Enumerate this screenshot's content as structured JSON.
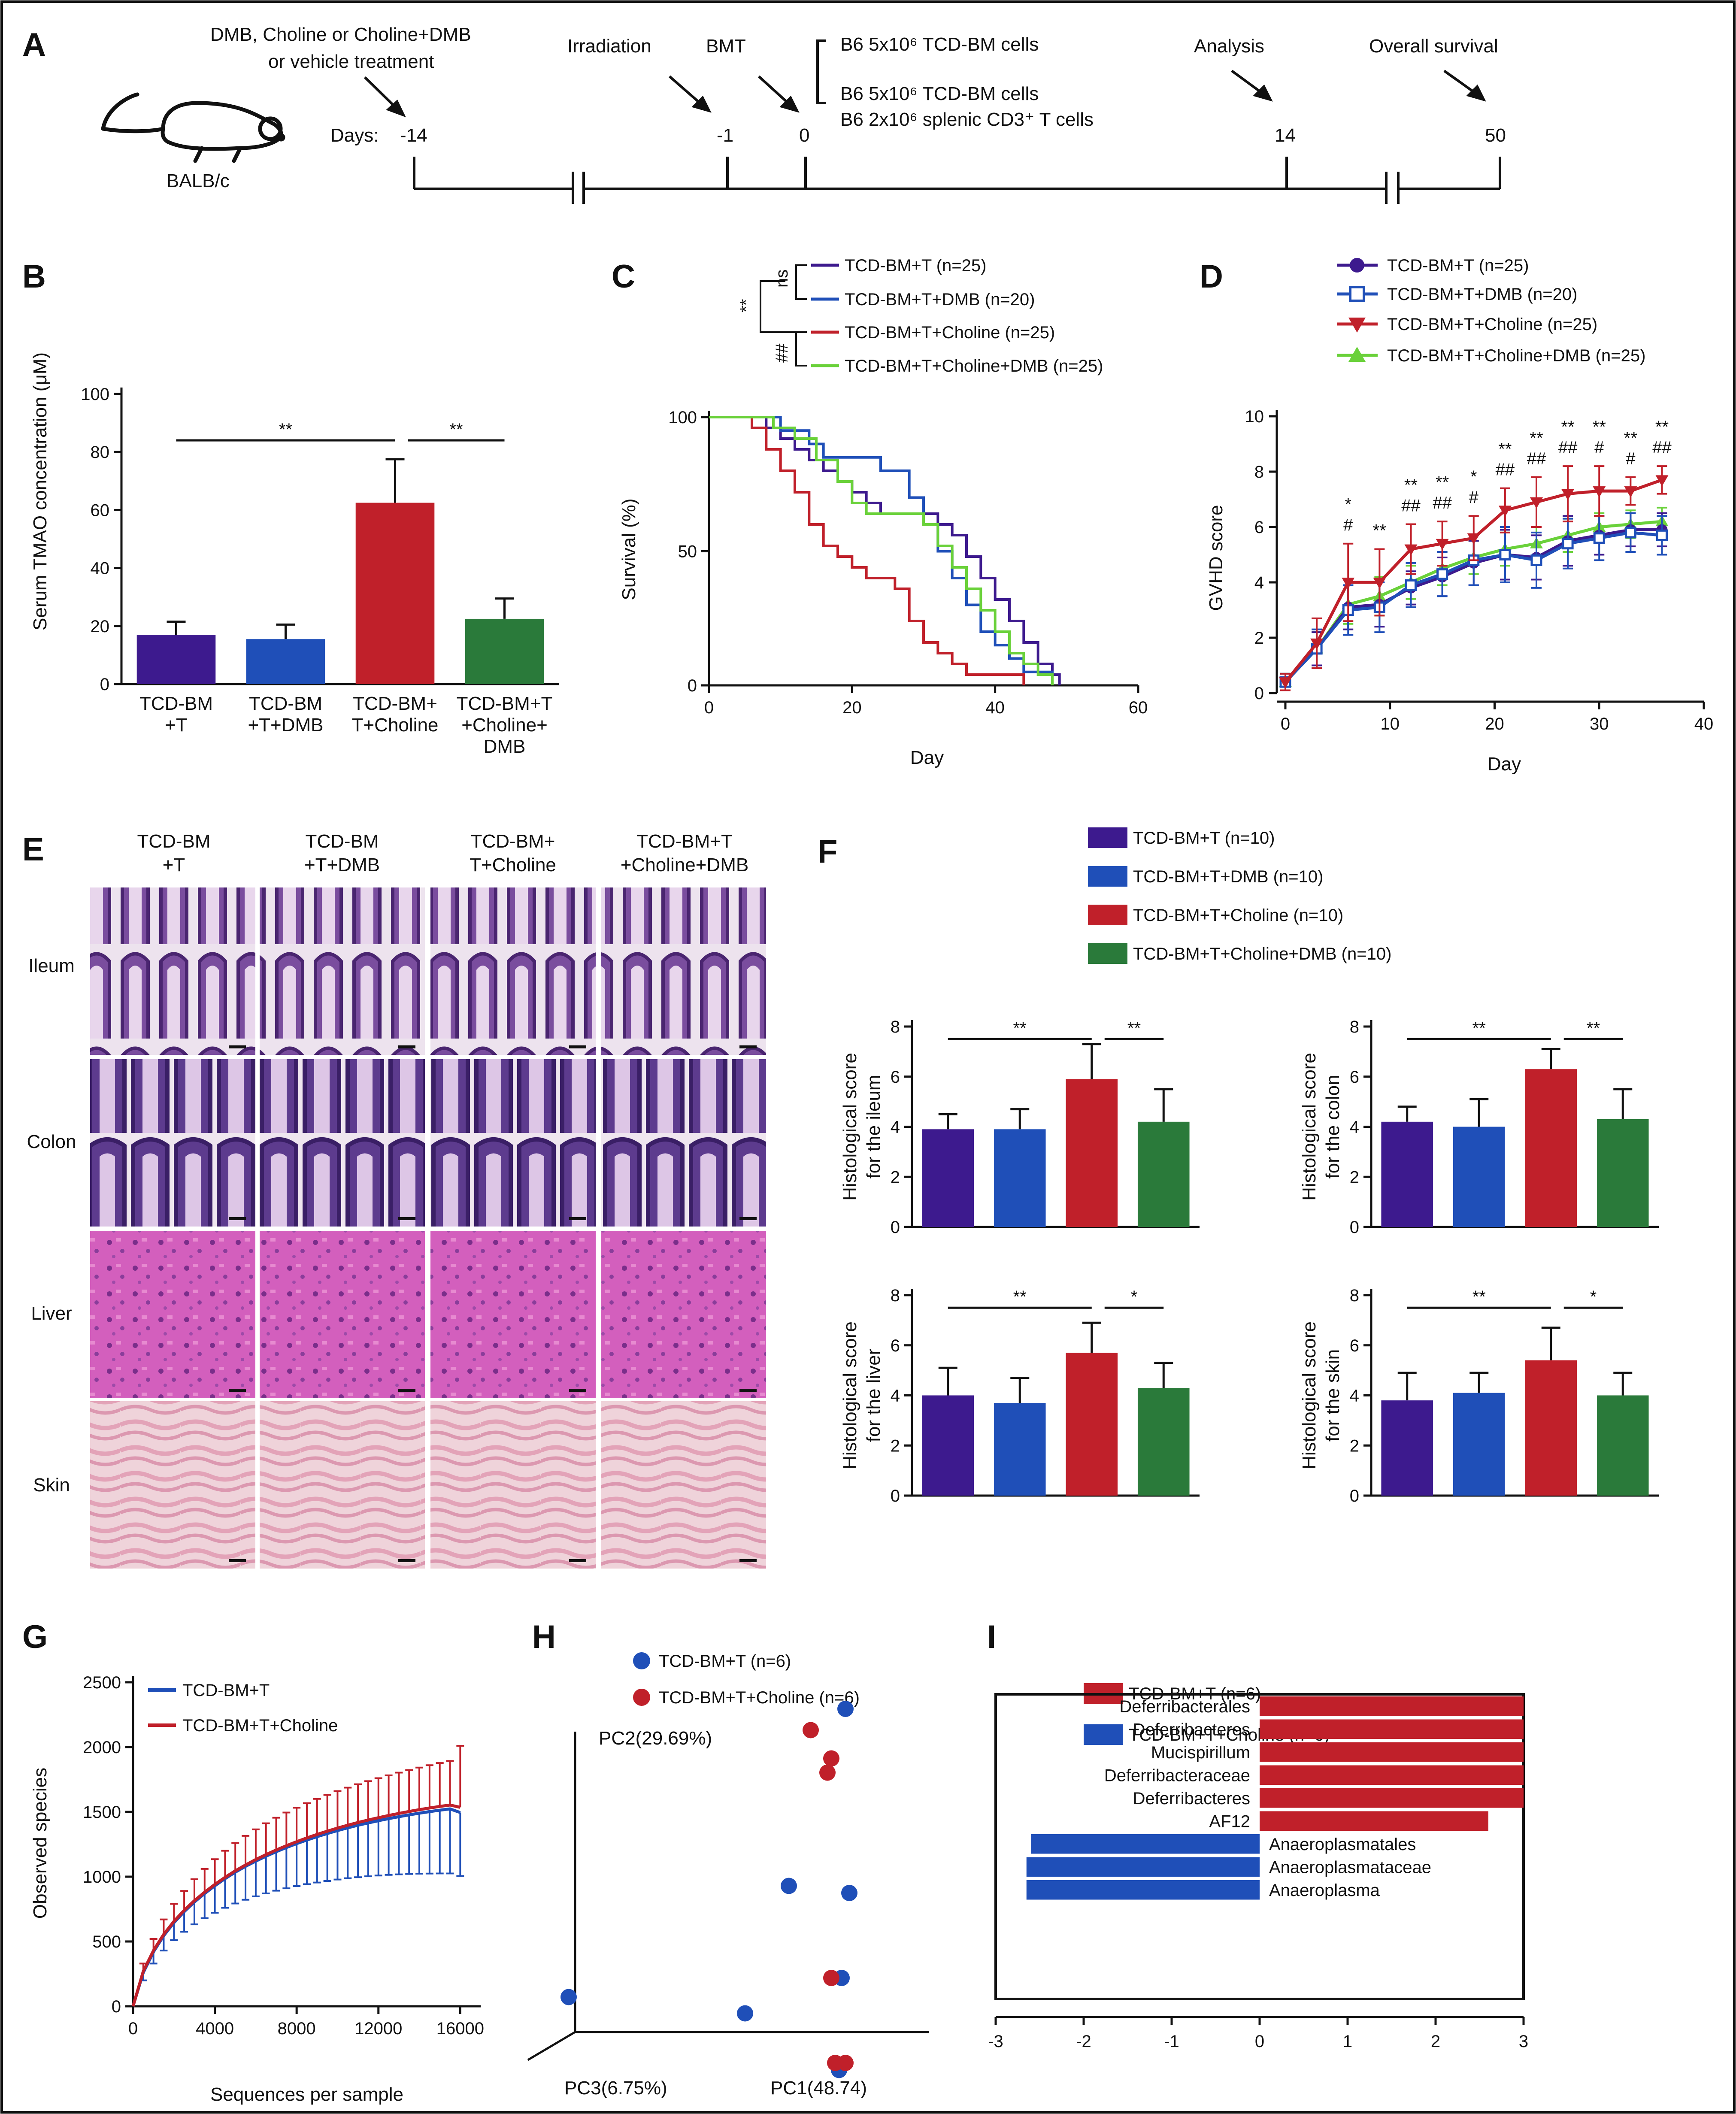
{
  "border_color": "#111111",
  "panel_A": {
    "letter": "A",
    "mouse_label": "BALB/c",
    "treatment_text": [
      "DMB, Choline or Choline+DMB",
      "or vehicle treatment"
    ],
    "days_label": "Days:",
    "events": [
      {
        "label": "Irradiation"
      },
      {
        "label": "BMT"
      },
      {
        "label": "Analysis"
      },
      {
        "label": "Overall survival"
      }
    ],
    "ticks": [
      "-14",
      "-1",
      "0",
      "14",
      "50"
    ],
    "cells_text": [
      "B6 5x10⁶ TCD-BM cells",
      "B6 5x10⁶ TCD-BM cells",
      "B6 2x10⁶ splenic CD3⁺ T cells"
    ]
  },
  "chart_data": [
    {
      "id": "B",
      "type": "bar",
      "ylabel": "Serum TMAO concentration (μM)",
      "ylim": [
        0,
        100
      ],
      "yticks": [
        0,
        20,
        40,
        60,
        80,
        100
      ],
      "categories": [
        [
          "TCD-BM",
          "+T"
        ],
        [
          "TCD-BM",
          "+T+DMB"
        ],
        [
          "TCD-BM+",
          "T+Choline"
        ],
        [
          "TCD-BM+T",
          "+Choline+",
          "DMB"
        ]
      ],
      "values": [
        17,
        15.5,
        62.5,
        22.5
      ],
      "errors": [
        4.5,
        5,
        15,
        7
      ],
      "colors": [
        "#3d1a8e",
        "#1f4fb8",
        "#c0202a",
        "#2a7a3a"
      ],
      "significance": [
        {
          "from": 0,
          "to": 2,
          "label": "**"
        },
        {
          "from": 2,
          "to": 3,
          "label": "**"
        }
      ]
    },
    {
      "id": "C",
      "type": "line",
      "xlabel": "Day",
      "ylabel": "Survival (%)",
      "xlim": [
        0,
        60
      ],
      "ylim": [
        0,
        100
      ],
      "xticks": [
        0,
        20,
        40,
        60
      ],
      "yticks": [
        0,
        50,
        100
      ],
      "series": [
        {
          "name": "TCD-BM+T (n=25)",
          "color": "#3d1a8e",
          "step_x": [
            0,
            8,
            10,
            12,
            14,
            16,
            18,
            20,
            22,
            24,
            26,
            28,
            30,
            32,
            34,
            36,
            38,
            40,
            42,
            44,
            46,
            48,
            49
          ],
          "step_y": [
            100,
            96,
            92,
            88,
            84,
            80,
            76,
            72,
            68,
            64,
            64,
            64,
            64,
            60,
            56,
            48,
            40,
            32,
            24,
            16,
            8,
            4,
            0
          ]
        },
        {
          "name": "TCD-BM+T+DMB (n=20)",
          "color": "#1f4fb8",
          "step_x": [
            0,
            10,
            14,
            16,
            18,
            20,
            24,
            28,
            30,
            32,
            34,
            36,
            38,
            40,
            42,
            44,
            46,
            48
          ],
          "step_y": [
            100,
            95,
            90,
            85,
            85,
            85,
            80,
            70,
            60,
            50,
            40,
            30,
            20,
            15,
            10,
            5,
            5,
            0
          ]
        },
        {
          "name": "TCD-BM+T+Choline (n=25)",
          "color": "#c0202a",
          "step_x": [
            0,
            6,
            8,
            10,
            12,
            14,
            16,
            18,
            20,
            22,
            24,
            26,
            28,
            30,
            32,
            34,
            36,
            40,
            44
          ],
          "step_y": [
            100,
            96,
            88,
            80,
            72,
            60,
            52,
            48,
            44,
            40,
            40,
            36,
            24,
            16,
            12,
            8,
            4,
            4,
            0
          ]
        },
        {
          "name": "TCD-BM+T+Choline+DMB (n=25)",
          "color": "#6ad13a",
          "step_x": [
            0,
            9,
            12,
            15,
            18,
            20,
            22,
            24,
            28,
            30,
            32,
            34,
            36,
            38,
            40,
            42,
            44,
            46,
            48
          ],
          "step_y": [
            100,
            96,
            92,
            84,
            76,
            68,
            64,
            64,
            64,
            60,
            52,
            44,
            36,
            28,
            20,
            12,
            8,
            4,
            0
          ]
        }
      ],
      "significance": [
        {
          "label": "ns"
        },
        {
          "label": "**"
        },
        {
          "label": "##"
        }
      ]
    },
    {
      "id": "D",
      "type": "line",
      "xlabel": "Day",
      "ylabel": "GVHD score",
      "xlim": [
        0,
        40
      ],
      "ylim": [
        0,
        10
      ],
      "xticks": [
        0,
        10,
        20,
        30,
        40
      ],
      "yticks": [
        0,
        2,
        4,
        6,
        8,
        10
      ],
      "x": [
        0,
        3,
        6,
        9,
        12,
        15,
        18,
        21,
        24,
        27,
        30,
        33,
        36
      ],
      "series": [
        {
          "name": "TCD-BM+T (n=25)",
          "color": "#3d1a8e",
          "marker": "circle",
          "values": [
            0.4,
            1.6,
            3.1,
            3.2,
            3.8,
            4.2,
            4.7,
            5.0,
            4.9,
            5.5,
            5.7,
            5.9,
            5.9
          ],
          "errors": [
            0.3,
            0.6,
            0.8,
            0.8,
            0.6,
            0.7,
            0.8,
            0.9,
            0.8,
            0.9,
            0.7,
            0.6,
            0.6
          ]
        },
        {
          "name": "TCD-BM+T+DMB (n=20)",
          "color": "#1f4fb8",
          "marker": "square",
          "values": [
            0.4,
            1.6,
            3.0,
            3.1,
            3.9,
            4.3,
            4.8,
            5.0,
            4.8,
            5.4,
            5.6,
            5.8,
            5.7
          ],
          "errors": [
            0.3,
            0.7,
            0.9,
            0.9,
            0.8,
            0.8,
            0.9,
            1.0,
            1.0,
            0.9,
            0.8,
            0.7,
            0.7
          ]
        },
        {
          "name": "TCD-BM+T+Choline (n=25)",
          "color": "#c0202a",
          "marker": "triangle-down",
          "values": [
            0.4,
            1.8,
            4.0,
            4.0,
            5.2,
            5.4,
            5.6,
            6.6,
            6.9,
            7.2,
            7.3,
            7.3,
            7.7
          ],
          "errors": [
            0.3,
            0.9,
            1.4,
            1.2,
            0.9,
            0.8,
            0.8,
            0.8,
            0.9,
            1.0,
            0.9,
            0.5,
            0.5
          ]
        },
        {
          "name": "TCD-BM+T+Choline+DMB (n=25)",
          "color": "#6ad13a",
          "marker": "triangle-up",
          "values": [
            0.4,
            1.6,
            3.2,
            3.5,
            4.0,
            4.5,
            4.9,
            5.2,
            5.4,
            5.7,
            6.0,
            6.1,
            6.2
          ],
          "errors": [
            0.3,
            0.6,
            0.7,
            0.7,
            0.6,
            0.6,
            0.6,
            0.6,
            0.6,
            0.6,
            0.5,
            0.5,
            0.5
          ]
        }
      ],
      "annotations": [
        {
          "x": 6,
          "lines": [
            "*",
            "#"
          ]
        },
        {
          "x": 9,
          "lines": [
            "**"
          ]
        },
        {
          "x": 12,
          "lines": [
            "**",
            "##"
          ]
        },
        {
          "x": 15,
          "lines": [
            "**",
            "##"
          ]
        },
        {
          "x": 18,
          "lines": [
            "*",
            "#"
          ]
        },
        {
          "x": 21,
          "lines": [
            "**",
            "##"
          ]
        },
        {
          "x": 24,
          "lines": [
            "**",
            "##"
          ]
        },
        {
          "x": 27,
          "lines": [
            "**",
            "##"
          ]
        },
        {
          "x": 30,
          "lines": [
            "**",
            "#"
          ]
        },
        {
          "x": 33,
          "lines": [
            "**",
            "#"
          ]
        },
        {
          "x": 36,
          "lines": [
            "**",
            "##"
          ]
        }
      ]
    },
    {
      "id": "F-ileum",
      "type": "bar",
      "ylabel": [
        "Histological score",
        "for the ileum"
      ],
      "ylim": [
        0,
        8
      ],
      "yticks": [
        0,
        2,
        4,
        6,
        8
      ],
      "values": [
        3.9,
        3.9,
        5.9,
        4.2
      ],
      "errors": [
        0.6,
        0.8,
        1.4,
        1.3
      ],
      "colors": [
        "#3d1a8e",
        "#1f4fb8",
        "#c0202a",
        "#2a7a3a"
      ],
      "significance": [
        {
          "from": 0,
          "to": 2,
          "label": "**"
        },
        {
          "from": 2,
          "to": 3,
          "label": "**"
        }
      ]
    },
    {
      "id": "F-colon",
      "type": "bar",
      "ylabel": [
        "Histological score",
        "for the colon"
      ],
      "ylim": [
        0,
        8
      ],
      "yticks": [
        0,
        2,
        4,
        6,
        8
      ],
      "values": [
        4.2,
        4.0,
        6.3,
        4.3
      ],
      "errors": [
        0.6,
        1.1,
        0.8,
        1.2
      ],
      "colors": [
        "#3d1a8e",
        "#1f4fb8",
        "#c0202a",
        "#2a7a3a"
      ],
      "significance": [
        {
          "from": 0,
          "to": 2,
          "label": "**"
        },
        {
          "from": 2,
          "to": 3,
          "label": "**"
        }
      ]
    },
    {
      "id": "F-liver",
      "type": "bar",
      "ylabel": [
        "Histological score",
        "for the liver"
      ],
      "ylim": [
        0,
        8
      ],
      "yticks": [
        0,
        2,
        4,
        6,
        8
      ],
      "values": [
        4.0,
        3.7,
        5.7,
        4.3
      ],
      "errors": [
        1.1,
        1.0,
        1.2,
        1.0
      ],
      "colors": [
        "#3d1a8e",
        "#1f4fb8",
        "#c0202a",
        "#2a7a3a"
      ],
      "significance": [
        {
          "from": 0,
          "to": 2,
          "label": "**"
        },
        {
          "from": 2,
          "to": 3,
          "label": "*"
        }
      ]
    },
    {
      "id": "F-skin",
      "type": "bar",
      "ylabel": [
        "Histological score",
        "for the skin"
      ],
      "ylim": [
        0,
        8
      ],
      "yticks": [
        0,
        2,
        4,
        6,
        8
      ],
      "values": [
        3.8,
        4.1,
        5.4,
        4.0
      ],
      "errors": [
        1.1,
        0.8,
        1.3,
        0.9
      ],
      "colors": [
        "#3d1a8e",
        "#1f4fb8",
        "#c0202a",
        "#2a7a3a"
      ],
      "significance": [
        {
          "from": 0,
          "to": 2,
          "label": "**"
        },
        {
          "from": 2,
          "to": 3,
          "label": "*"
        }
      ]
    },
    {
      "id": "G",
      "type": "line",
      "xlabel": "Sequences per sample",
      "ylabel": "Observed species",
      "xlim": [
        0,
        17000
      ],
      "ylim": [
        0,
        2500
      ],
      "xticks": [
        0,
        4000,
        8000,
        12000,
        16000
      ],
      "yticks": [
        0,
        500,
        1000,
        1500,
        2000,
        2500
      ],
      "x": [
        0,
        500,
        1000,
        1500,
        2000,
        2500,
        3000,
        3500,
        4000,
        4500,
        5000,
        5500,
        6000,
        6500,
        7000,
        7500,
        8000,
        8500,
        9000,
        9500,
        10000,
        10500,
        11000,
        11500,
        12000,
        12500,
        13000,
        13500,
        14000,
        14500,
        15000,
        15500,
        16000
      ],
      "series": [
        {
          "name": "TCD-BM+T",
          "color": "#1f4fb8",
          "values": [
            0,
            260,
            420,
            545,
            645,
            730,
            805,
            870,
            930,
            985,
            1035,
            1080,
            1120,
            1158,
            1193,
            1225,
            1255,
            1283,
            1309,
            1333,
            1356,
            1377,
            1397,
            1415,
            1432,
            1448,
            1463,
            1477,
            1490,
            1502,
            1513,
            1523,
            1495
          ],
          "lower": [
            0,
            200,
            330,
            430,
            510,
            575,
            632,
            680,
            722,
            760,
            793,
            822,
            848,
            871,
            892,
            910,
            927,
            942,
            955,
            967,
            978,
            988,
            996,
            1003,
            1009,
            1014,
            1018,
            1021,
            1023,
            1024,
            1025,
            1025,
            1005
          ]
        },
        {
          "name": "TCD-BM+T+Choline",
          "color": "#c0202a",
          "values": [
            0,
            270,
            430,
            555,
            655,
            740,
            815,
            880,
            940,
            995,
            1045,
            1090,
            1132,
            1170,
            1206,
            1239,
            1270,
            1299,
            1326,
            1351,
            1375,
            1397,
            1418,
            1437,
            1455,
            1472,
            1488,
            1503,
            1517,
            1530,
            1542,
            1553,
            1535
          ],
          "upper": [
            0,
            330,
            520,
            670,
            790,
            890,
            980,
            1060,
            1135,
            1200,
            1260,
            1315,
            1365,
            1412,
            1455,
            1495,
            1532,
            1567,
            1600,
            1631,
            1660,
            1687,
            1713,
            1737,
            1760,
            1782,
            1803,
            1823,
            1842,
            1860,
            1877,
            1893,
            2010
          ]
        }
      ]
    },
    {
      "id": "H",
      "type": "scatter",
      "axes": {
        "pc1": "PC1(48.74)",
        "pc2": "PC2(29.69%)",
        "pc3": "PC3(6.75%)"
      },
      "series": [
        {
          "name": "TCD-BM+T (n=6)",
          "color": "#1f4fb8",
          "points": [
            [
              2.1,
              3.1
            ],
            [
              2.13,
              1.8
            ],
            [
              2.07,
              1.2
            ],
            [
              1.66,
              1.85
            ],
            [
              2.05,
              0.55
            ],
            [
              1.32,
              0.95
            ]
          ]
        },
        {
          "name": "TCD-BM+T+Choline (n=6)",
          "color": "#c0202a",
          "points": [
            [
              1.83,
              2.95
            ],
            [
              1.99,
              2.75
            ],
            [
              1.96,
              2.65
            ],
            [
              1.99,
              1.2
            ],
            [
              2.02,
              0.6
            ],
            [
              2.1,
              0.6
            ]
          ]
        }
      ],
      "extra_point": {
        "series": "TCD-BM+T (n=6)",
        "pc3": 1.0,
        "pc2": 1.05
      }
    },
    {
      "id": "I",
      "type": "bar",
      "orientation": "horizontal",
      "xlim": [
        -3,
        3
      ],
      "xticks": [
        -3,
        -2,
        -1,
        0,
        1,
        2,
        3
      ],
      "legend": [
        {
          "name": "TCD-BM+T (n=6)",
          "color": "#c0202a"
        },
        {
          "name": "TCD-BM+T+Choline (n=6)",
          "color": "#1f4fb8"
        }
      ],
      "categories": [
        "Deferribacterales",
        "Deferribacteres",
        "Mucispirillum",
        "Deferribacteraceae",
        "Deferribacteres",
        "AF12",
        "Anaeroplasmatales",
        "Anaeroplasmataceae",
        "Anaeroplasma"
      ],
      "values": [
        3.0,
        3.0,
        3.0,
        3.0,
        3.0,
        2.6,
        -2.6,
        -2.65,
        -2.65
      ]
    }
  ],
  "panel_letters": {
    "B": "B",
    "C": "C",
    "D": "D",
    "E": "E",
    "F": "F",
    "G": "G",
    "H": "H",
    "I": "I"
  },
  "panel_E": {
    "columns": [
      [
        "TCD-BM",
        "+T"
      ],
      [
        "TCD-BM",
        "+T+DMB"
      ],
      [
        "TCD-BM+",
        "T+Choline"
      ],
      [
        "TCD-BM+T",
        "+Choline+DMB"
      ]
    ],
    "rows": [
      "Ileum",
      "Colon",
      "Liver",
      "Skin"
    ]
  },
  "panel_F_legend": [
    "TCD-BM+T (n=10)",
    "TCD-BM+T+DMB (n=10)",
    "TCD-BM+T+Choline (n=10)",
    "TCD-BM+T+Choline+DMB (n=10)"
  ],
  "panel_F_colors": [
    "#3d1a8e",
    "#1f4fb8",
    "#c0202a",
    "#2a7a3a"
  ]
}
